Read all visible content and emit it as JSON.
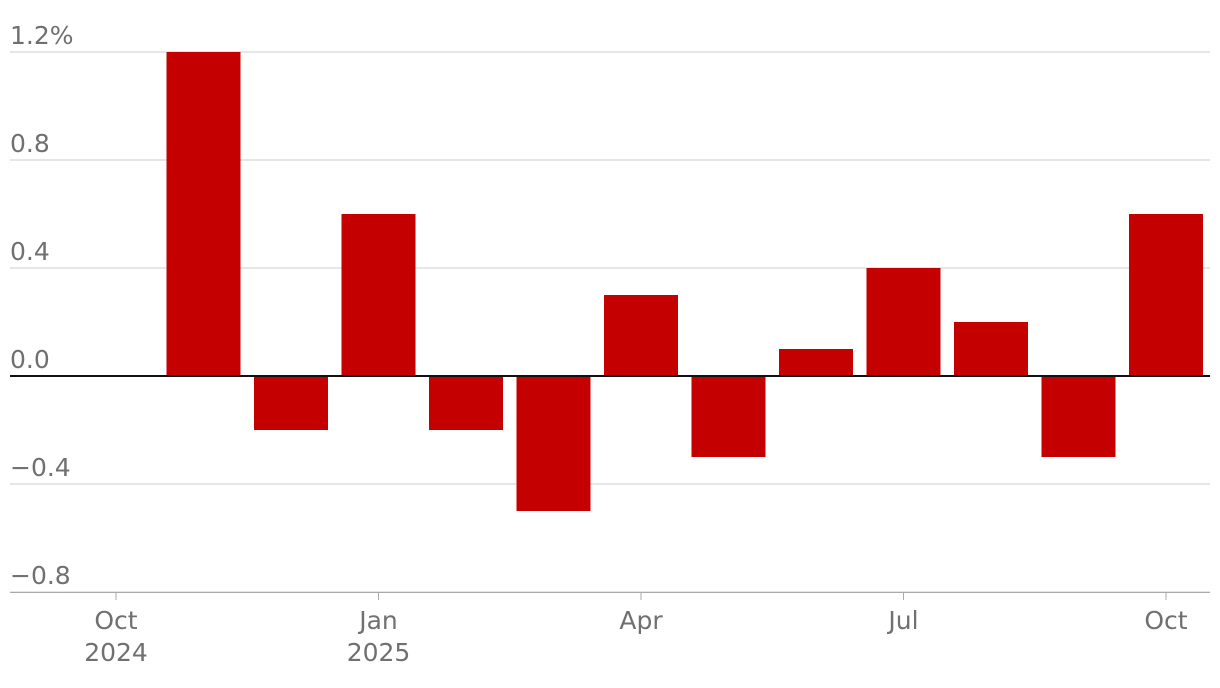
{
  "chart_data": {
    "type": "bar",
    "title": "",
    "xlabel": "",
    "ylabel": "",
    "colors": {
      "bar": "#c50000",
      "grid": "#cccccc",
      "zero_line": "#111111",
      "text": "#707070"
    },
    "ylim": [
      -0.8,
      1.2
    ],
    "yticks": [
      {
        "value": 1.2,
        "label": "1.2%"
      },
      {
        "value": 0.8,
        "label": "0.8"
      },
      {
        "value": 0.4,
        "label": "0.4"
      },
      {
        "value": 0.0,
        "label": "0.0"
      },
      {
        "value": -0.4,
        "label": "−0.4"
      },
      {
        "value": -0.8,
        "label": "−0.8"
      }
    ],
    "grid": true,
    "categories": [
      "2024-11",
      "2024-12",
      "2025-01",
      "2025-02",
      "2025-03",
      "2025-04",
      "2025-05",
      "2025-06",
      "2025-07",
      "2025-08",
      "2025-09",
      "2025-10"
    ],
    "values": [
      1.2,
      -0.2,
      0.6,
      -0.2,
      -0.5,
      0.3,
      -0.3,
      0.1,
      0.4,
      0.2,
      -0.3,
      0.6
    ],
    "xticks": [
      {
        "month": "2024-10",
        "label": [
          "Oct",
          "2024"
        ]
      },
      {
        "month": "2025-01",
        "label": [
          "Jan",
          "2025"
        ]
      },
      {
        "month": "2025-04",
        "label": [
          "Apr"
        ]
      },
      {
        "month": "2025-07",
        "label": [
          "Jul"
        ]
      },
      {
        "month": "2025-10",
        "label": [
          "Oct"
        ]
      }
    ]
  }
}
